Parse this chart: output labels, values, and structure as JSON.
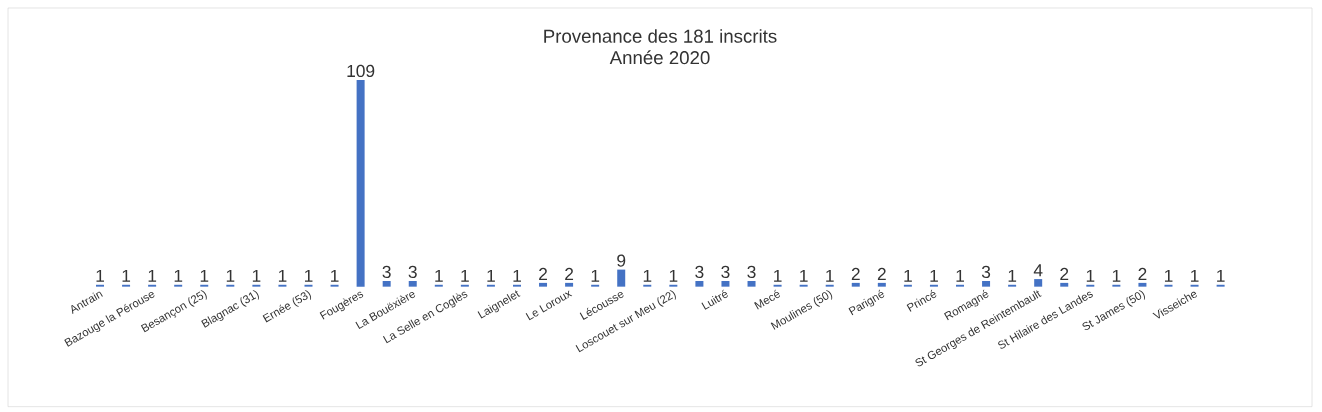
{
  "chart_data": {
    "type": "bar",
    "title": "Provenance des 181 inscrits",
    "subtitle": "Année 2020",
    "categories": [
      "Antrain",
      null,
      "Bazouge la Pérouse",
      null,
      "Besançon (25)",
      null,
      "Blagnac (31)",
      null,
      "Ernée (53)",
      null,
      "Fougères",
      null,
      "La Bouëxière",
      null,
      "La Selle en Coglès",
      null,
      "Laignelet",
      null,
      "Le Loroux",
      null,
      "Lécousse",
      null,
      "Loscouet sur Meu (22)",
      null,
      "Luitré",
      null,
      "Mecé",
      null,
      "Moulines (50)",
      null,
      "Parigné",
      null,
      "Princé",
      null,
      "Romagné",
      null,
      "St Georges de Reintembault",
      null,
      "St Hilaire des Landes",
      null,
      "St James (50)",
      null,
      "Visseiche",
      null
    ],
    "values": [
      1,
      1,
      1,
      1,
      1,
      1,
      1,
      1,
      1,
      1,
      109,
      3,
      3,
      1,
      1,
      1,
      1,
      2,
      2,
      1,
      9,
      1,
      1,
      3,
      3,
      3,
      1,
      1,
      1,
      2,
      2,
      1,
      1,
      1,
      3,
      1,
      4,
      2,
      1,
      1,
      2,
      1,
      1,
      1
    ],
    "value_labels": [
      "1",
      "1",
      "1",
      "1",
      "1",
      "1",
      "1",
      "1",
      "1",
      "1",
      "109",
      "3",
      "3",
      "1",
      "1",
      "1",
      "1",
      "2",
      "2",
      "1",
      "9",
      "1",
      "1",
      "3",
      "3",
      "3",
      "1",
      "1",
      "1",
      "2",
      "2",
      "1",
      "1",
      "1",
      "3",
      "1",
      "4",
      "2",
      "1",
      "1",
      "2",
      "1",
      "1",
      "1"
    ],
    "color": "#4472c4"
  }
}
